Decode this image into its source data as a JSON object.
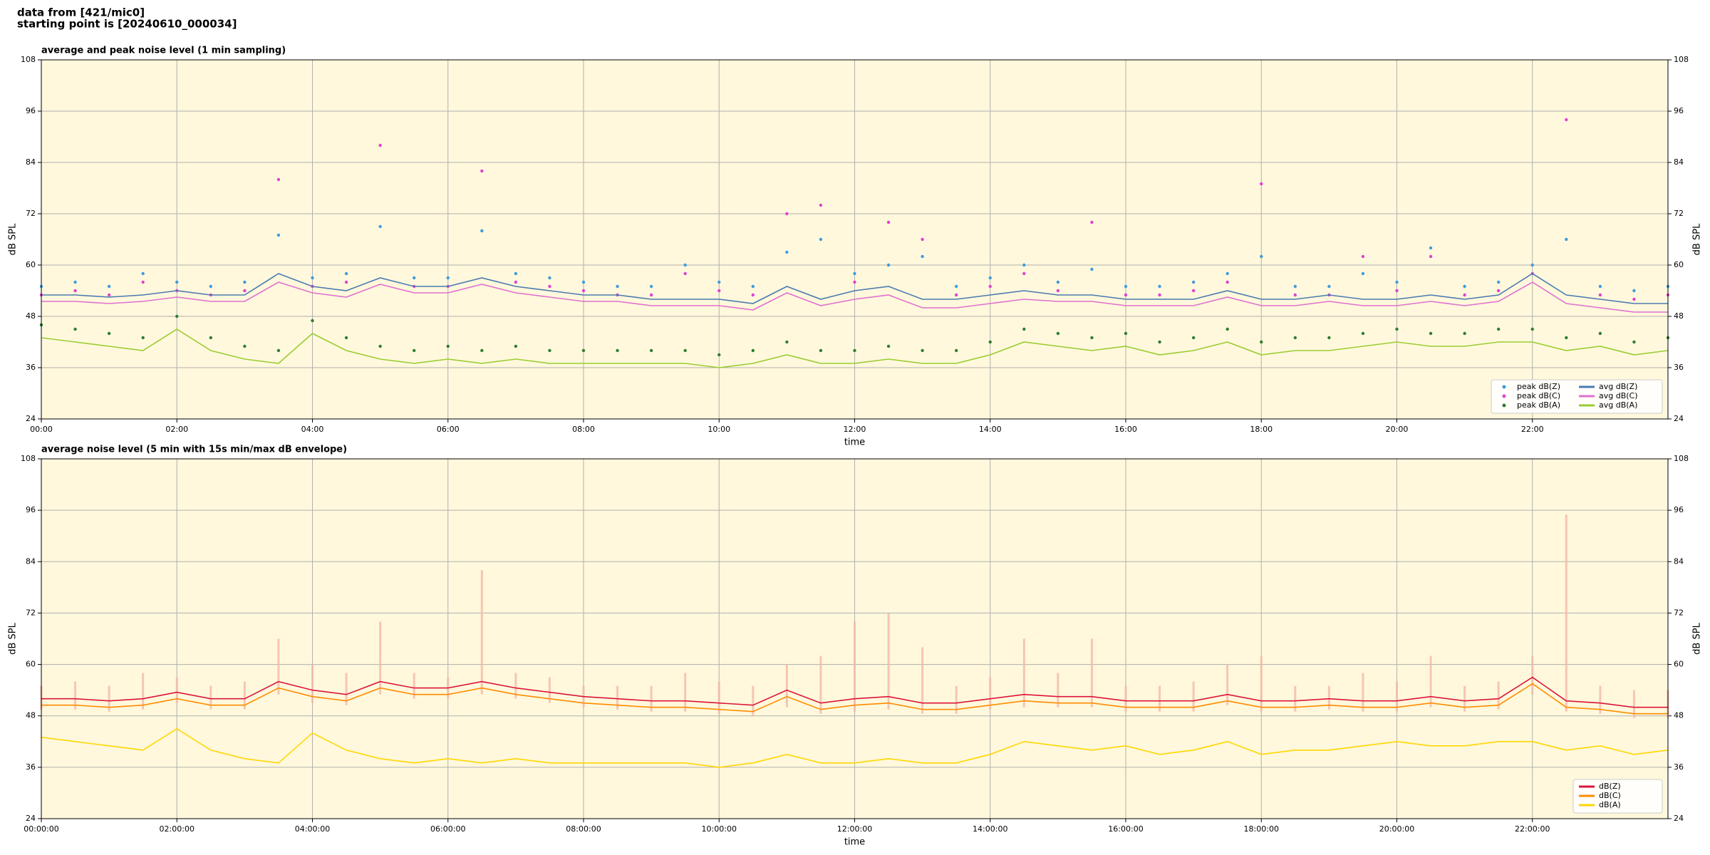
{
  "header": [
    "data from [421/mic0]",
    "starting point is [20240610_000034]"
  ],
  "chart_data": [
    {
      "type": "line",
      "title": "average and peak noise level (1 min sampling)",
      "xlabel": "time",
      "ylabel": "dB SPL",
      "xlim": [
        0,
        24
      ],
      "ylim": [
        24,
        108
      ],
      "xticks": [
        {
          "value": 0,
          "label": "00:00"
        },
        {
          "value": 2,
          "label": "02:00"
        },
        {
          "value": 4,
          "label": "04:00"
        },
        {
          "value": 6,
          "label": "06:00"
        },
        {
          "value": 8,
          "label": "08:00"
        },
        {
          "value": 10,
          "label": "10:00"
        },
        {
          "value": 12,
          "label": "12:00"
        },
        {
          "value": 14,
          "label": "14:00"
        },
        {
          "value": 16,
          "label": "16:00"
        },
        {
          "value": 18,
          "label": "18:00"
        },
        {
          "value": 20,
          "label": "20:00"
        },
        {
          "value": 22,
          "label": "22:00"
        }
      ],
      "yticks": [
        24,
        36,
        48,
        60,
        72,
        84,
        96,
        108
      ],
      "grid": true,
      "legend": "lower right",
      "legend_columns": 2,
      "x": [
        0,
        0.5,
        1,
        1.5,
        2,
        2.5,
        3,
        3.5,
        4,
        4.5,
        5,
        5.5,
        6,
        6.5,
        7,
        7.5,
        8,
        8.5,
        9,
        9.5,
        10,
        10.5,
        11,
        11.5,
        12,
        12.5,
        13,
        13.5,
        14,
        14.5,
        15,
        15.5,
        16,
        16.5,
        17,
        17.5,
        18,
        18.5,
        19,
        19.5,
        20,
        20.5,
        21,
        21.5,
        22,
        22.5,
        23,
        23.5,
        24
      ],
      "series": [
        {
          "name": "peak dB(Z)",
          "style": "dot",
          "color": "#3d9be0",
          "values": [
            55,
            56,
            55,
            58,
            56,
            55,
            56,
            67,
            57,
            58,
            69,
            57,
            57,
            68,
            58,
            57,
            56,
            55,
            55,
            60,
            56,
            55,
            63,
            66,
            58,
            60,
            62,
            55,
            57,
            60,
            56,
            59,
            55,
            55,
            56,
            58,
            62,
            55,
            55,
            58,
            56,
            64,
            55,
            56,
            60,
            66,
            55,
            54,
            55
          ]
        },
        {
          "name": "peak dB(C)",
          "style": "dot",
          "color": "#e040d0",
          "values": [
            53,
            54,
            53,
            56,
            54,
            53,
            54,
            80,
            55,
            56,
            88,
            55,
            55,
            82,
            56,
            55,
            54,
            53,
            53,
            58,
            54,
            53,
            72,
            74,
            56,
            70,
            66,
            53,
            55,
            58,
            54,
            70,
            53,
            53,
            54,
            56,
            79,
            53,
            53,
            62,
            54,
            62,
            53,
            54,
            58,
            94,
            53,
            52,
            53
          ]
        },
        {
          "name": "peak dB(A)",
          "style": "dot",
          "color": "#2e7d32",
          "values": [
            46,
            45,
            44,
            43,
            48,
            43,
            41,
            40,
            47,
            43,
            41,
            40,
            41,
            40,
            41,
            40,
            40,
            40,
            40,
            40,
            39,
            40,
            42,
            40,
            40,
            41,
            40,
            40,
            42,
            45,
            44,
            43,
            44,
            42,
            43,
            45,
            42,
            43,
            43,
            44,
            45,
            44,
            44,
            45,
            45,
            43,
            44,
            42,
            43
          ]
        },
        {
          "name": "avg dB(Z)",
          "style": "line",
          "color": "#4a7ab0",
          "values": [
            53,
            53,
            52.5,
            53,
            54,
            53,
            53,
            58,
            55,
            54,
            57,
            55,
            55,
            57,
            55,
            54,
            53,
            53,
            52,
            52,
            52,
            51,
            55,
            52,
            54,
            55,
            52,
            52,
            53,
            54,
            53,
            53,
            52,
            52,
            52,
            54,
            52,
            52,
            53,
            52,
            52,
            53,
            52,
            53,
            58,
            53,
            52,
            51,
            51
          ]
        },
        {
          "name": "avg dB(C)",
          "style": "line",
          "color": "#e070d0",
          "values": [
            51.5,
            51.5,
            51,
            51.5,
            52.5,
            51.5,
            51.5,
            56,
            53.5,
            52.5,
            55.5,
            53.5,
            53.5,
            55.5,
            53.5,
            52.5,
            51.5,
            51.5,
            50.5,
            50.5,
            50.5,
            49.5,
            53.5,
            50.5,
            52,
            53,
            50,
            50,
            51,
            52,
            51.5,
            51.5,
            50.5,
            50.5,
            50.5,
            52.5,
            50.5,
            50.5,
            51.5,
            50.5,
            50.5,
            51.5,
            50.5,
            51.5,
            56,
            51,
            50,
            49,
            49
          ]
        },
        {
          "name": "avg dB(A)",
          "style": "line",
          "color": "#9acd32",
          "values": [
            43,
            42,
            41,
            40,
            45,
            40,
            38,
            37,
            44,
            40,
            38,
            37,
            38,
            37,
            38,
            37,
            37,
            37,
            37,
            37,
            36,
            37,
            39,
            37,
            37,
            38,
            37,
            37,
            39,
            42,
            41,
            40,
            41,
            39,
            40,
            42,
            39,
            40,
            40,
            41,
            42,
            41,
            41,
            42,
            42,
            40,
            41,
            39,
            40
          ]
        }
      ]
    },
    {
      "type": "line",
      "title": "average noise level (5 min with 15s min/max dB envelope)",
      "xlabel": "time",
      "ylabel": "dB SPL",
      "xlim": [
        0,
        24
      ],
      "ylim": [
        24,
        108
      ],
      "xticks": [
        {
          "value": 0,
          "label": "00:00:00"
        },
        {
          "value": 2,
          "label": "02:00:00"
        },
        {
          "value": 4,
          "label": "04:00:00"
        },
        {
          "value": 6,
          "label": "06:00:00"
        },
        {
          "value": 8,
          "label": "08:00:00"
        },
        {
          "value": 10,
          "label": "10:00:00"
        },
        {
          "value": 12,
          "label": "12:00:00"
        },
        {
          "value": 14,
          "label": "14:00:00"
        },
        {
          "value": 16,
          "label": "16:00:00"
        },
        {
          "value": 18,
          "label": "18:00:00"
        },
        {
          "value": 20,
          "label": "20:00:00"
        },
        {
          "value": 22,
          "label": "22:00:00"
        }
      ],
      "yticks": [
        24,
        36,
        48,
        60,
        72,
        84,
        96,
        108
      ],
      "grid": true,
      "legend": "lower right",
      "legend_columns": 1,
      "x": [
        0,
        0.5,
        1,
        1.5,
        2,
        2.5,
        3,
        3.5,
        4,
        4.5,
        5,
        5.5,
        6,
        6.5,
        7,
        7.5,
        8,
        8.5,
        9,
        9.5,
        10,
        10.5,
        11,
        11.5,
        12,
        12.5,
        13,
        13.5,
        14,
        14.5,
        15,
        15.5,
        16,
        16.5,
        17,
        17.5,
        18,
        18.5,
        19,
        19.5,
        20,
        20.5,
        21,
        21.5,
        22,
        22.5,
        23,
        23.5,
        24
      ],
      "envelope": {
        "color": "#f5b8a8",
        "upper": [
          55,
          56,
          55,
          58,
          57,
          55,
          56,
          66,
          60,
          58,
          70,
          58,
          57,
          82,
          58,
          57,
          55,
          55,
          55,
          58,
          56,
          55,
          60,
          62,
          70,
          72,
          64,
          55,
          57,
          66,
          58,
          66,
          55,
          55,
          56,
          60,
          62,
          55,
          55,
          58,
          56,
          62,
          55,
          56,
          62,
          95,
          55,
          54,
          54
        ],
        "lower": [
          49.5,
          49.5,
          49,
          49.5,
          51,
          49.5,
          49.5,
          53,
          51,
          50.5,
          53,
          52,
          52,
          53,
          52,
          51,
          50,
          49.5,
          49,
          49,
          48.5,
          48,
          50,
          48.5,
          49,
          49.5,
          48.5,
          48.5,
          49.5,
          50,
          50,
          50,
          49,
          49,
          49,
          50.5,
          49,
          49,
          49.5,
          49,
          49,
          50,
          49,
          49.5,
          53,
          49,
          48.5,
          47.5,
          47.5
        ]
      },
      "series": [
        {
          "name": "dB(Z)",
          "style": "line",
          "color": "#dc143c",
          "values": [
            52,
            52,
            51.5,
            52,
            53.5,
            52,
            52,
            56,
            54,
            53,
            56,
            54.5,
            54.5,
            56,
            54.5,
            53.5,
            52.5,
            52,
            51.5,
            51.5,
            51,
            50.5,
            54,
            51,
            52,
            52.5,
            51,
            51,
            52,
            53,
            52.5,
            52.5,
            51.5,
            51.5,
            51.5,
            53,
            51.5,
            51.5,
            52,
            51.5,
            51.5,
            52.5,
            51.5,
            52,
            57,
            51.5,
            51,
            50,
            50
          ]
        },
        {
          "name": "dB(C)",
          "style": "line",
          "color": "#ff8c00",
          "values": [
            50.5,
            50.5,
            50,
            50.5,
            52,
            50.5,
            50.5,
            54.5,
            52.5,
            51.5,
            54.5,
            53,
            53,
            54.5,
            53,
            52,
            51,
            50.5,
            50,
            50,
            49.5,
            49,
            52.5,
            49.5,
            50.5,
            51,
            49.5,
            49.5,
            50.5,
            51.5,
            51,
            51,
            50,
            50,
            50,
            51.5,
            50,
            50,
            50.5,
            50,
            50,
            51,
            50,
            50.5,
            55.5,
            50,
            49.5,
            48.5,
            48.5
          ]
        },
        {
          "name": "dB(A)",
          "style": "line",
          "color": "#ffd700",
          "values": [
            43,
            42,
            41,
            40,
            45,
            40,
            38,
            37,
            44,
            40,
            38,
            37,
            38,
            37,
            38,
            37,
            37,
            37,
            37,
            37,
            36,
            37,
            39,
            37,
            37,
            38,
            37,
            37,
            39,
            42,
            41,
            40,
            41,
            39,
            40,
            42,
            39,
            40,
            40,
            41,
            42,
            41,
            41,
            42,
            42,
            40,
            41,
            39,
            40
          ]
        }
      ]
    }
  ]
}
